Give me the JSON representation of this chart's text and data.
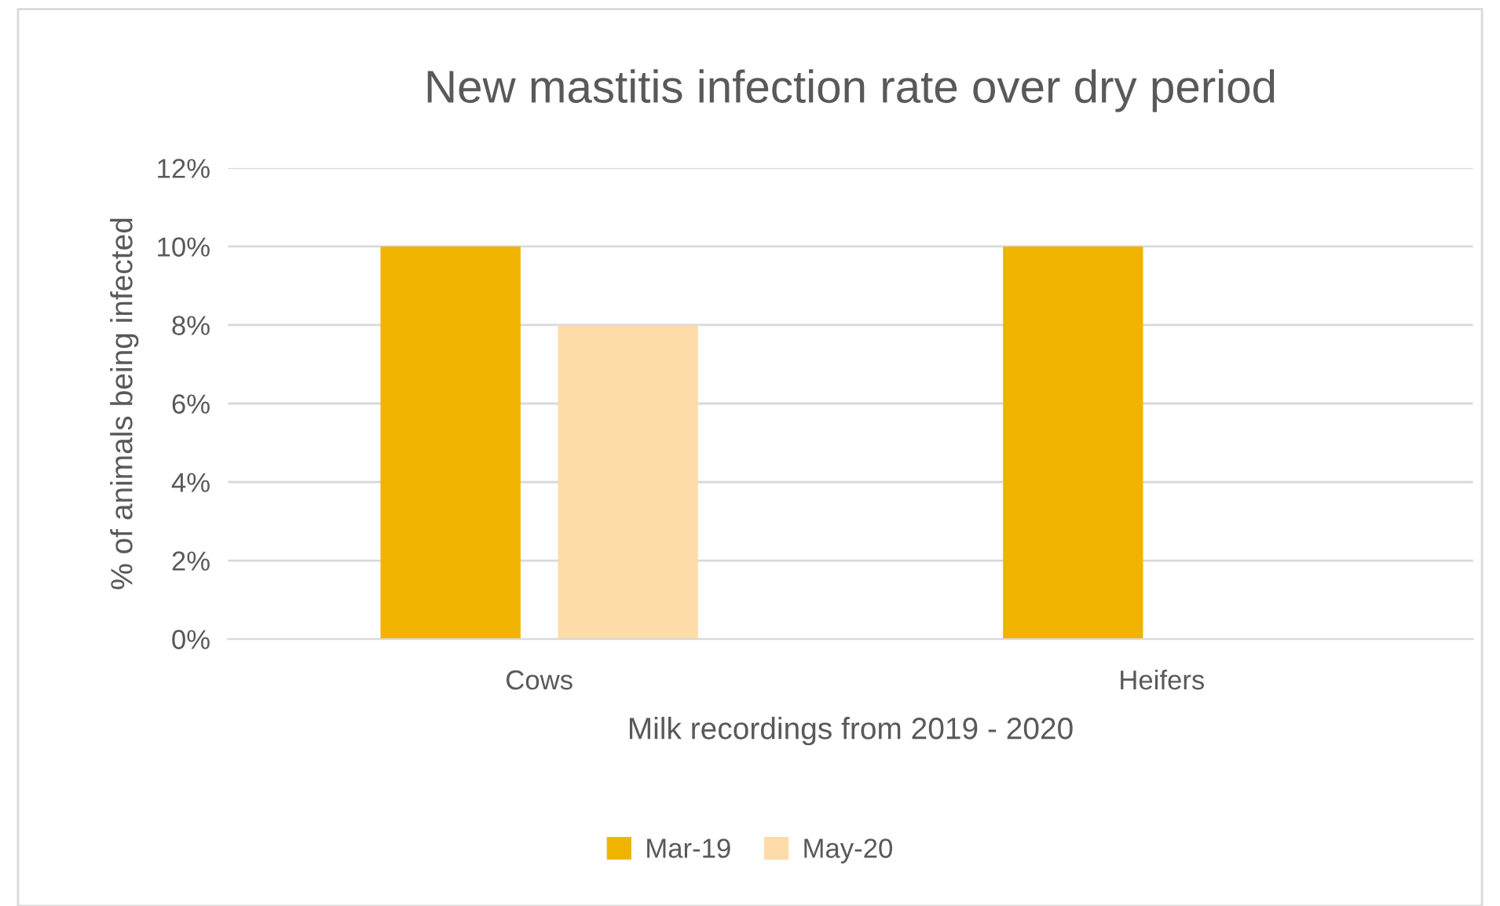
{
  "chart_data": {
    "type": "bar",
    "title": "New mastitis infection rate over dry period",
    "xlabel": "Milk recordings from 2019 - 2020",
    "ylabel": "% of animals being infected",
    "categories": [
      "Cows",
      "Heifers"
    ],
    "series": [
      {
        "name": "Mar-19",
        "color": "#f0b400",
        "values": [
          10,
          10
        ]
      },
      {
        "name": "May-20",
        "color": "#fddcaa",
        "values": [
          8,
          0
        ]
      }
    ],
    "ylim": [
      0,
      12
    ],
    "yticks": [
      {
        "value": 0,
        "label": "0%"
      },
      {
        "value": 2,
        "label": "2%"
      },
      {
        "value": 4,
        "label": "4%"
      },
      {
        "value": 6,
        "label": "6%"
      },
      {
        "value": 8,
        "label": "8%"
      },
      {
        "value": 10,
        "label": "10%"
      },
      {
        "value": 12,
        "label": "12%"
      }
    ],
    "grid": "y",
    "legend": "bottom"
  }
}
